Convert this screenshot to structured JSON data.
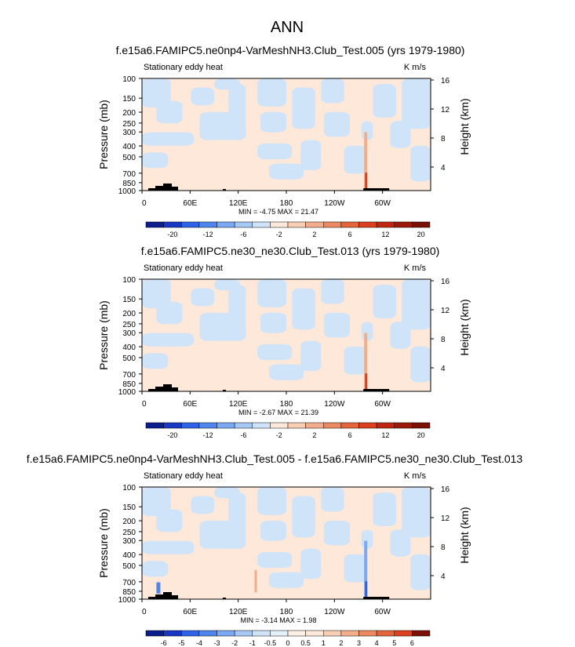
{
  "page_title": "ANN",
  "chart_data": [
    {
      "type": "heatmap",
      "title": "f.e15a6.FAMIPC5.ne0np4-VarMeshNH3.Club_Test.005 (yrs 1979-1980)",
      "left_label": "Stationary eddy heat",
      "units": "K m/s",
      "ylabel": "Pressure (mb)",
      "ylabel_right": "Height (km)",
      "pressure_ticks": [
        "100",
        "150",
        "200",
        "250",
        "300",
        "400",
        "500",
        "700",
        "850",
        "1000"
      ],
      "height_ticks": [
        "16",
        "12",
        "8",
        "4"
      ],
      "x_ticks": [
        "0",
        "60E",
        "120E",
        "180",
        "120W",
        "60W"
      ],
      "stats": "MIN = -4.75  MAX = 21.47",
      "min": -4.75,
      "max": 21.47,
      "colorbar_levels": [
        "-20",
        "-12",
        "-6",
        "-2",
        "2",
        "6",
        "12",
        "20"
      ],
      "colorbar_colors": [
        "#0b1e8c",
        "#1838c4",
        "#2e62e8",
        "#4f86ee",
        "#7aa8f2",
        "#a7c8f5",
        "#cfe3f9",
        "#fde8d9",
        "#f8cfb5",
        "#f3ad8a",
        "#ec8960",
        "#e4643c",
        "#d9411f",
        "#c0260f",
        "#9c1a0a",
        "#7a1106"
      ]
    },
    {
      "type": "heatmap",
      "title": "f.e15a6.FAMIPC5.ne30_ne30.Club_Test.013 (yrs 1979-1980)",
      "left_label": "Stationary eddy heat",
      "units": "K m/s",
      "ylabel": "Pressure (mb)",
      "ylabel_right": "Height (km)",
      "pressure_ticks": [
        "100",
        "150",
        "200",
        "250",
        "300",
        "400",
        "500",
        "700",
        "850",
        "1000"
      ],
      "height_ticks": [
        "16",
        "12",
        "8",
        "4"
      ],
      "x_ticks": [
        "0",
        "60E",
        "120E",
        "180",
        "120W",
        "60W"
      ],
      "stats": "MIN = -2.67  MAX = 21.39",
      "min": -2.67,
      "max": 21.39,
      "colorbar_levels": [
        "-20",
        "-12",
        "-6",
        "-2",
        "2",
        "6",
        "12",
        "20"
      ],
      "colorbar_colors": [
        "#0b1e8c",
        "#1838c4",
        "#2e62e8",
        "#4f86ee",
        "#7aa8f2",
        "#a7c8f5",
        "#cfe3f9",
        "#fde8d9",
        "#f8cfb5",
        "#f3ad8a",
        "#ec8960",
        "#e4643c",
        "#d9411f",
        "#c0260f",
        "#9c1a0a",
        "#7a1106"
      ]
    },
    {
      "type": "heatmap",
      "title": "f.e15a6.FAMIPC5.ne0np4-VarMeshNH3.Club_Test.005 - f.e15a6.FAMIPC5.ne30_ne30.Club_Test.013",
      "left_label": "Stationary eddy heat",
      "units": "K m/s",
      "ylabel": "Pressure (mb)",
      "ylabel_right": "Height (km)",
      "pressure_ticks": [
        "100",
        "150",
        "200",
        "250",
        "300",
        "400",
        "500",
        "700",
        "850",
        "1000"
      ],
      "height_ticks": [
        "16",
        "12",
        "8",
        "4"
      ],
      "x_ticks": [
        "0",
        "60E",
        "120E",
        "180",
        "120W",
        "60W"
      ],
      "stats": "MIN = -3.14  MAX = 1.98",
      "min": -3.14,
      "max": 1.98,
      "colorbar_levels": [
        "-6",
        "-5",
        "-4",
        "-3",
        "-2",
        "-1",
        "-0.5",
        "0",
        "0.5",
        "1",
        "2",
        "3",
        "4",
        "5",
        "6"
      ],
      "colorbar_colors": [
        "#0b1e8c",
        "#1838c4",
        "#2e62e8",
        "#4f86ee",
        "#7aa8f2",
        "#a7c8f5",
        "#cfe3f9",
        "#e6f0fb",
        "#fdf0e6",
        "#fde8d9",
        "#f8cfb5",
        "#f3ad8a",
        "#ec8960",
        "#e4643c",
        "#d9411f",
        "#7a1106"
      ]
    }
  ]
}
